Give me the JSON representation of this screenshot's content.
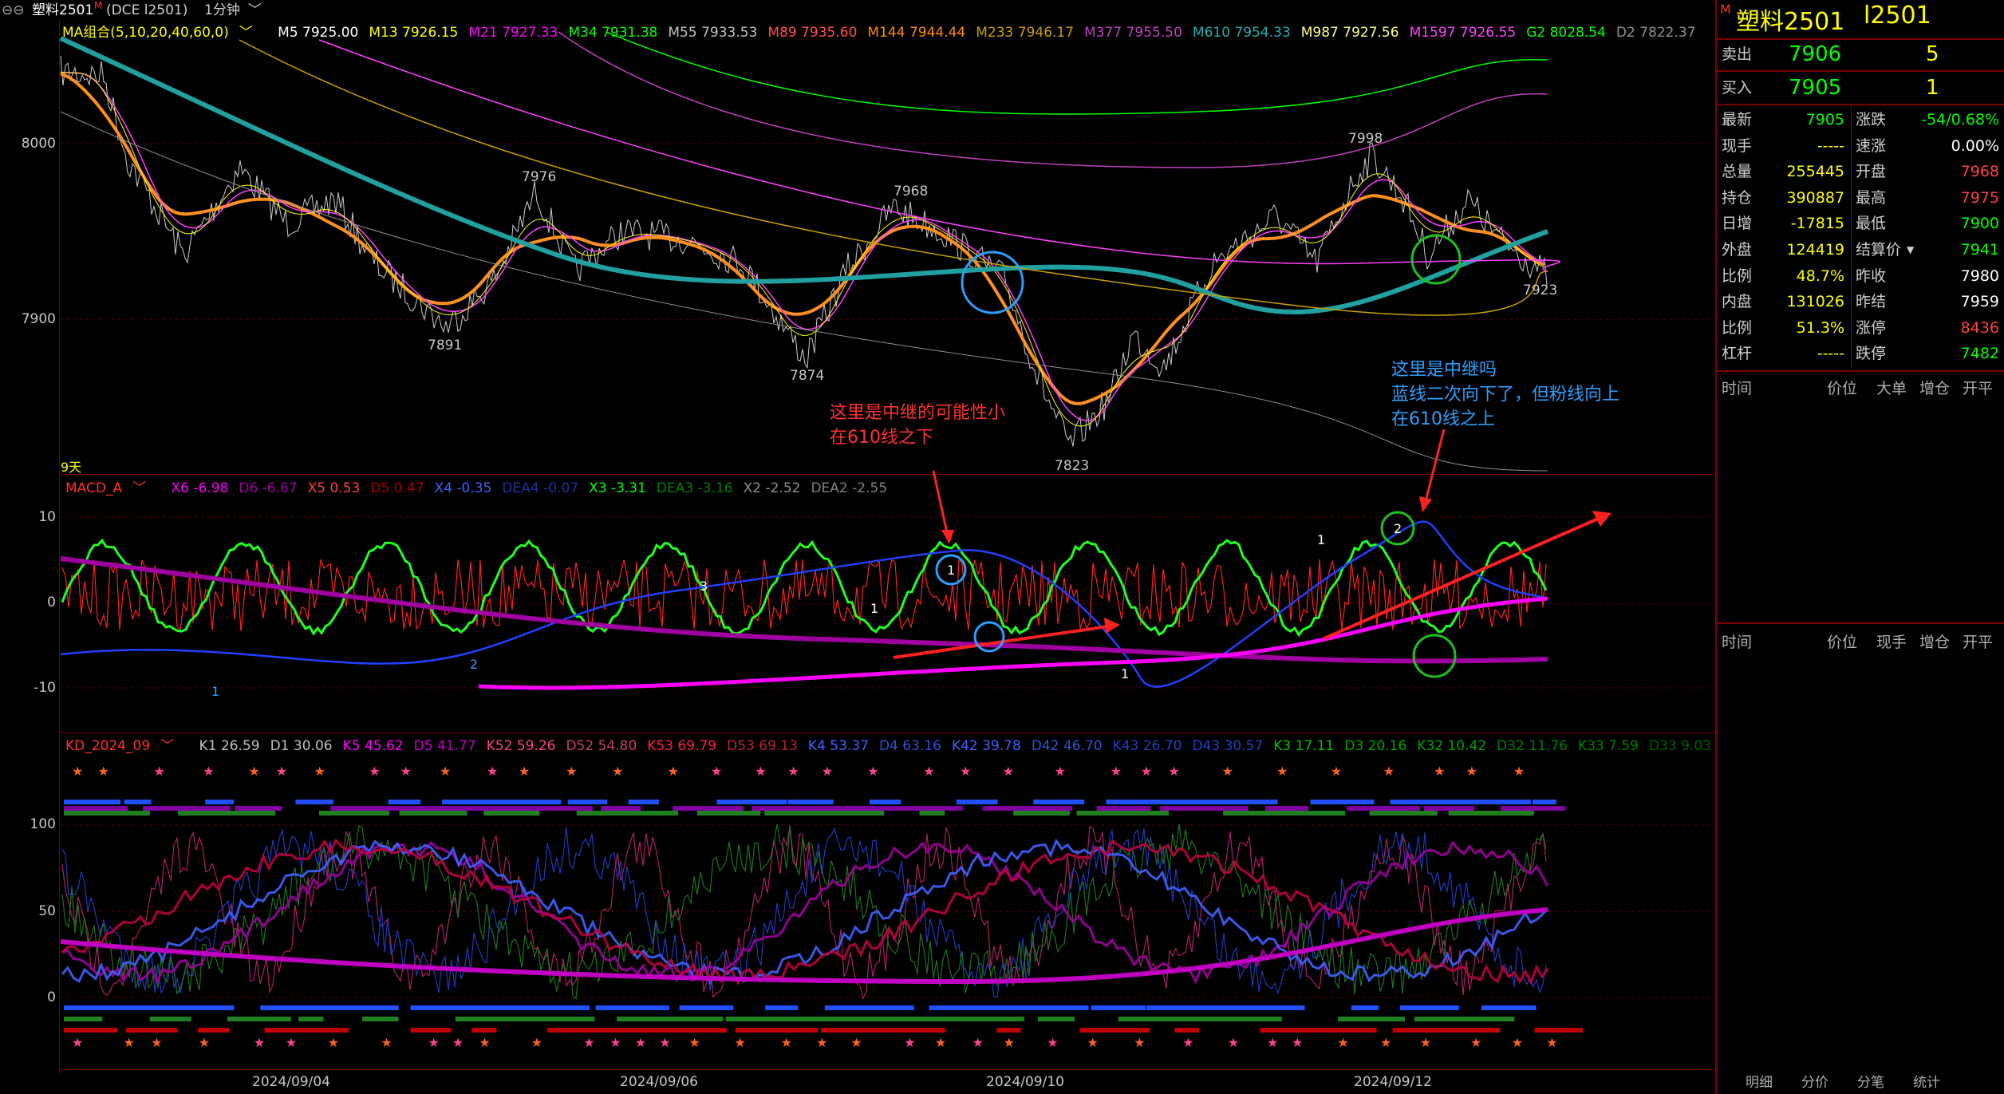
{
  "topbar": {
    "symbol": "塑料2501",
    "symbol_flag": "M",
    "exchange": "(DCE  l2501)",
    "period": "1分钟"
  },
  "ma_legend": {
    "name": "MA组合(5,10,20,40,60,0)",
    "items": [
      {
        "label": "M5 7925.00",
        "color": "#ffffff"
      },
      {
        "label": "M13 7926.15",
        "color": "#ffff00"
      },
      {
        "label": "M21 7927.33",
        "color": "#ff00ff"
      },
      {
        "label": "M34 7931.38",
        "color": "#00ff00"
      },
      {
        "label": "M55 7933.53",
        "color": "#c0c0c0"
      },
      {
        "label": "M89 7935.60",
        "color": "#ff5050"
      },
      {
        "label": "M144 7944.44",
        "color": "#ff8c00"
      },
      {
        "label": "M233 7946.17",
        "color": "#c8a000"
      },
      {
        "label": "M377 7955.50",
        "color": "#c040c0"
      },
      {
        "label": "M610 7954.33",
        "color": "#20b0b0"
      },
      {
        "label": "M987 7927.56",
        "color": "#ffff80"
      },
      {
        "label": "M1597 7926.55",
        "color": "#ff40ff"
      },
      {
        "label": "G2 8028.54",
        "color": "#00ff00"
      },
      {
        "label": "D2 7822.37",
        "color": "#909090"
      }
    ]
  },
  "price_axis": [
    "8000",
    "7900"
  ],
  "price_markers": [
    {
      "text": "7976",
      "color": "#ff4040"
    },
    {
      "text": "7968",
      "color": "#ff4040"
    },
    {
      "text": "7998",
      "color": "#ff4040"
    },
    {
      "text": "7891",
      "color": "#40ffff"
    },
    {
      "text": "7874",
      "color": "#40ffff"
    },
    {
      "text": "7823",
      "color": "#40ffff"
    },
    {
      "text": "7923",
      "color": "#40ffff"
    }
  ],
  "period_label": "9天",
  "macd_legend": {
    "name": "MACD_A",
    "items": [
      {
        "label": "X6 -6.98",
        "color": "#ff00ff"
      },
      {
        "label": "D6 -6.67",
        "color": "#a000a0"
      },
      {
        "label": "X5 0.53",
        "color": "#ff4040"
      },
      {
        "label": "D5 0.47",
        "color": "#a00000"
      },
      {
        "label": "X4 -0.35",
        "color": "#4060ff"
      },
      {
        "label": "DEA4 -0.07",
        "color": "#2030a0"
      },
      {
        "label": "X3 -3.31",
        "color": "#00ff00"
      },
      {
        "label": "DEA3 -3.16",
        "color": "#008000"
      },
      {
        "label": "X2 -2.52",
        "color": "#909090"
      },
      {
        "label": "DEA2 -2.55",
        "color": "#808080"
      }
    ]
  },
  "macd_axis": [
    "10",
    "0",
    "-10"
  ],
  "kd_legend": {
    "name": "KD_2024_09",
    "items": [
      {
        "label": "K1 26.59",
        "color": "#c0c0c0"
      },
      {
        "label": "D1 30.06",
        "color": "#c0c0c0"
      },
      {
        "label": "K5 45.62",
        "color": "#ff00ff"
      },
      {
        "label": "D5 41.77",
        "color": "#c000c0"
      },
      {
        "label": "K52 59.26",
        "color": "#ff4080"
      },
      {
        "label": "D52 54.80",
        "color": "#c04070"
      },
      {
        "label": "K53 69.79",
        "color": "#ff2040"
      },
      {
        "label": "D53 69.13",
        "color": "#c02030"
      },
      {
        "label": "K4 53.37",
        "color": "#4060ff"
      },
      {
        "label": "D4 63.16",
        "color": "#3050d0"
      },
      {
        "label": "K42 39.78",
        "color": "#4060ff"
      },
      {
        "label": "D42 46.70",
        "color": "#3050d0"
      },
      {
        "label": "K43 26.70",
        "color": "#2040c0"
      },
      {
        "label": "D43 30.57",
        "color": "#2040c0"
      },
      {
        "label": "K3 17.11",
        "color": "#00c000"
      },
      {
        "label": "D3 20.16",
        "color": "#00a000"
      },
      {
        "label": "K32 10.42",
        "color": "#00a000"
      },
      {
        "label": "D32 11.76",
        "color": "#008000"
      },
      {
        "label": "K33 7.59",
        "color": "#008000"
      },
      {
        "label": "D33 9.03",
        "color": "#006000"
      }
    ]
  },
  "kd_axis": [
    "100",
    "50",
    "0"
  ],
  "x_axis": [
    "2024/09/04",
    "2024/09/06",
    "2024/09/10",
    "2024/09/12"
  ],
  "annotations": {
    "a1_line1": "这里是中继的可能性小",
    "a1_line2": "在610线之下",
    "a2_line1": "这里是中继吗",
    "a2_line2": "蓝线二次向下了，但粉线向上",
    "a2_line3": "在610线之上"
  },
  "circle_labels": [
    "1",
    "2",
    "1",
    "2",
    "3",
    "1",
    "1",
    "1"
  ],
  "quote": {
    "flag": "M",
    "name": "塑料2501",
    "code": "l2501",
    "sell_label": "卖出",
    "sell_price": "7906",
    "sell_vol": "5",
    "buy_label": "买入",
    "buy_price": "7905",
    "buy_vol": "1",
    "rows": [
      {
        "l1": "最新",
        "v1": "7905",
        "c1": "#00ff00",
        "l2": "涨跌",
        "v2": "-54/0.68%",
        "c2": "#00ff00"
      },
      {
        "l1": "现手",
        "v1": "-----",
        "c1": "#ffff00",
        "l2": "速涨",
        "v2": "0.00%",
        "c2": "#ffffff"
      },
      {
        "l1": "总量",
        "v1": "255445",
        "c1": "#ffff00",
        "l2": "开盘",
        "v2": "7968",
        "c2": "#ff4040"
      },
      {
        "l1": "持仓",
        "v1": "390887",
        "c1": "#ffff00",
        "l2": "最高",
        "v2": "7975",
        "c2": "#ff4040"
      },
      {
        "l1": "日增",
        "v1": "-17815",
        "c1": "#ffff00",
        "l2": "最低",
        "v2": "7900",
        "c2": "#00ff00"
      },
      {
        "l1": "外盘",
        "v1": "124419",
        "c1": "#ffff00",
        "l2": "结算价",
        "v2": "7941",
        "c2": "#00ff00"
      },
      {
        "l1": "比例",
        "v1": "48.7%",
        "c1": "#ffff00",
        "l2": "昨收",
        "v2": "7980",
        "c2": "#ffffff"
      },
      {
        "l1": "内盘",
        "v1": "131026",
        "c1": "#ffff00",
        "l2": "昨结",
        "v2": "7959",
        "c2": "#ffffff"
      },
      {
        "l1": "比例",
        "v1": "51.3%",
        "c1": "#ffff00",
        "l2": "涨停",
        "v2": "8436",
        "c2": "#ff4040"
      },
      {
        "l1": "杠杆",
        "v1": "-----",
        "c1": "#ffff00",
        "l2": "跌停",
        "v2": "7482",
        "c2": "#00ff00"
      }
    ],
    "ticks_header": [
      "时间",
      "价位",
      "大单",
      "增仓",
      "开平"
    ],
    "trades_header": [
      "时间",
      "价位",
      "现手",
      "增仓",
      "开平"
    ],
    "bottom_tabs": [
      "明细",
      "分价",
      "分笔",
      "统计"
    ]
  }
}
